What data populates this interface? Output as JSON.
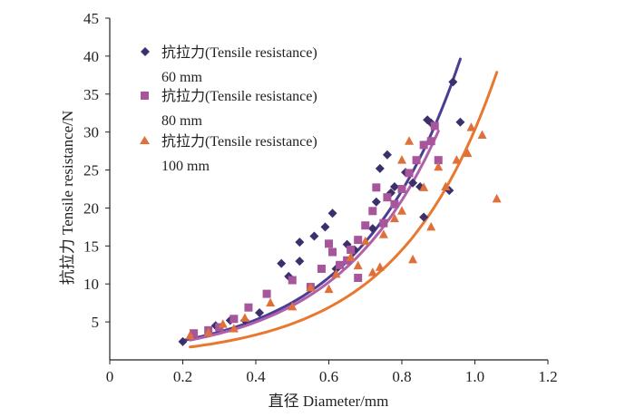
{
  "chart_data": {
    "type": "scatter",
    "title": "",
    "xlabel": "直径 Diameter/mm",
    "ylabel": "抗拉力 Tensile resistance/N",
    "xlim": [
      0,
      1.2
    ],
    "ylim": [
      0,
      45
    ],
    "x_ticks": [
      "0",
      "0.2",
      "0.4",
      "0.6",
      "0.8",
      "1.0",
      "1.2"
    ],
    "y_ticks": [
      "5",
      "10",
      "15",
      "20",
      "25",
      "30",
      "35",
      "40",
      "45"
    ],
    "legend_position": "top-left",
    "series": [
      {
        "name_line1": "抗拉力(Tensile resistance)",
        "name_line2": "60 mm",
        "marker": "diamond",
        "color": "#3d2f6b",
        "fit_color": "#4a3d93",
        "fit": {
          "a": 1.25,
          "b": 3.6,
          "x_start": 0.2,
          "x_end": 0.96
        },
        "points": [
          [
            0.2,
            2.4
          ],
          [
            0.29,
            4.5
          ],
          [
            0.33,
            5.2
          ],
          [
            0.37,
            5.2
          ],
          [
            0.41,
            6.2
          ],
          [
            0.47,
            12.7
          ],
          [
            0.49,
            11
          ],
          [
            0.52,
            15.5
          ],
          [
            0.52,
            13
          ],
          [
            0.56,
            16.3
          ],
          [
            0.59,
            17.5
          ],
          [
            0.61,
            19.3
          ],
          [
            0.62,
            12
          ],
          [
            0.65,
            15.2
          ],
          [
            0.67,
            14.5
          ],
          [
            0.72,
            17.3
          ],
          [
            0.73,
            20.8
          ],
          [
            0.74,
            25.2
          ],
          [
            0.76,
            27
          ],
          [
            0.77,
            22
          ],
          [
            0.78,
            22.8
          ],
          [
            0.81,
            24.7
          ],
          [
            0.83,
            23.3
          ],
          [
            0.85,
            22.8
          ],
          [
            0.86,
            18.8
          ],
          [
            0.87,
            31.6
          ],
          [
            0.88,
            31.2
          ],
          [
            0.93,
            22.3
          ],
          [
            0.94,
            36.6
          ],
          [
            0.96,
            31.3
          ]
        ]
      },
      {
        "name_line1": "抗拉力(Tensile resistance)",
        "name_line2": "80 mm",
        "marker": "square",
        "color": "#a8569c",
        "fit_color": "#b060a8",
        "fit": {
          "a": 1.18,
          "b": 3.6,
          "x_start": 0.22,
          "x_end": 0.9
        },
        "points": [
          [
            0.23,
            3.5
          ],
          [
            0.27,
            3.9
          ],
          [
            0.3,
            4.3
          ],
          [
            0.34,
            5.4
          ],
          [
            0.38,
            6.9
          ],
          [
            0.43,
            8.7
          ],
          [
            0.5,
            10.5
          ],
          [
            0.55,
            9.6
          ],
          [
            0.58,
            12
          ],
          [
            0.6,
            15.3
          ],
          [
            0.61,
            14.2
          ],
          [
            0.63,
            12.5
          ],
          [
            0.65,
            13.1
          ],
          [
            0.66,
            14.5
          ],
          [
            0.68,
            10.8
          ],
          [
            0.68,
            15.8
          ],
          [
            0.7,
            17.7
          ],
          [
            0.72,
            19.6
          ],
          [
            0.73,
            22.7
          ],
          [
            0.75,
            18
          ],
          [
            0.76,
            21.4
          ],
          [
            0.78,
            20.5
          ],
          [
            0.8,
            22.5
          ],
          [
            0.82,
            24.6
          ],
          [
            0.84,
            26.3
          ],
          [
            0.86,
            28.3
          ],
          [
            0.88,
            28.8
          ],
          [
            0.9,
            26.3
          ],
          [
            0.89,
            30.8
          ]
        ]
      },
      {
        "name_line1": "抗拉力(Tensile resistance)",
        "name_line2": "100 mm",
        "marker": "triangle",
        "color": "#e0703a",
        "fit_color": "#e87830",
        "fit": {
          "a": 0.75,
          "b": 3.7,
          "x_start": 0.22,
          "x_end": 1.06
        },
        "points": [
          [
            0.22,
            3.2
          ],
          [
            0.27,
            3.6
          ],
          [
            0.31,
            4.7
          ],
          [
            0.34,
            4.1
          ],
          [
            0.37,
            5.5
          ],
          [
            0.44,
            7.5
          ],
          [
            0.5,
            7
          ],
          [
            0.55,
            9.5
          ],
          [
            0.6,
            9.3
          ],
          [
            0.62,
            11.3
          ],
          [
            0.66,
            13.5
          ],
          [
            0.68,
            12.4
          ],
          [
            0.7,
            15.6
          ],
          [
            0.72,
            11.5
          ],
          [
            0.74,
            12.2
          ],
          [
            0.75,
            16.5
          ],
          [
            0.78,
            18.6
          ],
          [
            0.8,
            19.6
          ],
          [
            0.8,
            26.3
          ],
          [
            0.82,
            28.8
          ],
          [
            0.83,
            13.2
          ],
          [
            0.86,
            22.7
          ],
          [
            0.88,
            17.5
          ],
          [
            0.9,
            25.4
          ],
          [
            0.92,
            22.8
          ],
          [
            0.95,
            26.3
          ],
          [
            0.98,
            27.2
          ],
          [
            0.99,
            30.6
          ],
          [
            1.02,
            29.6
          ],
          [
            1.06,
            21.2
          ]
        ]
      }
    ]
  }
}
